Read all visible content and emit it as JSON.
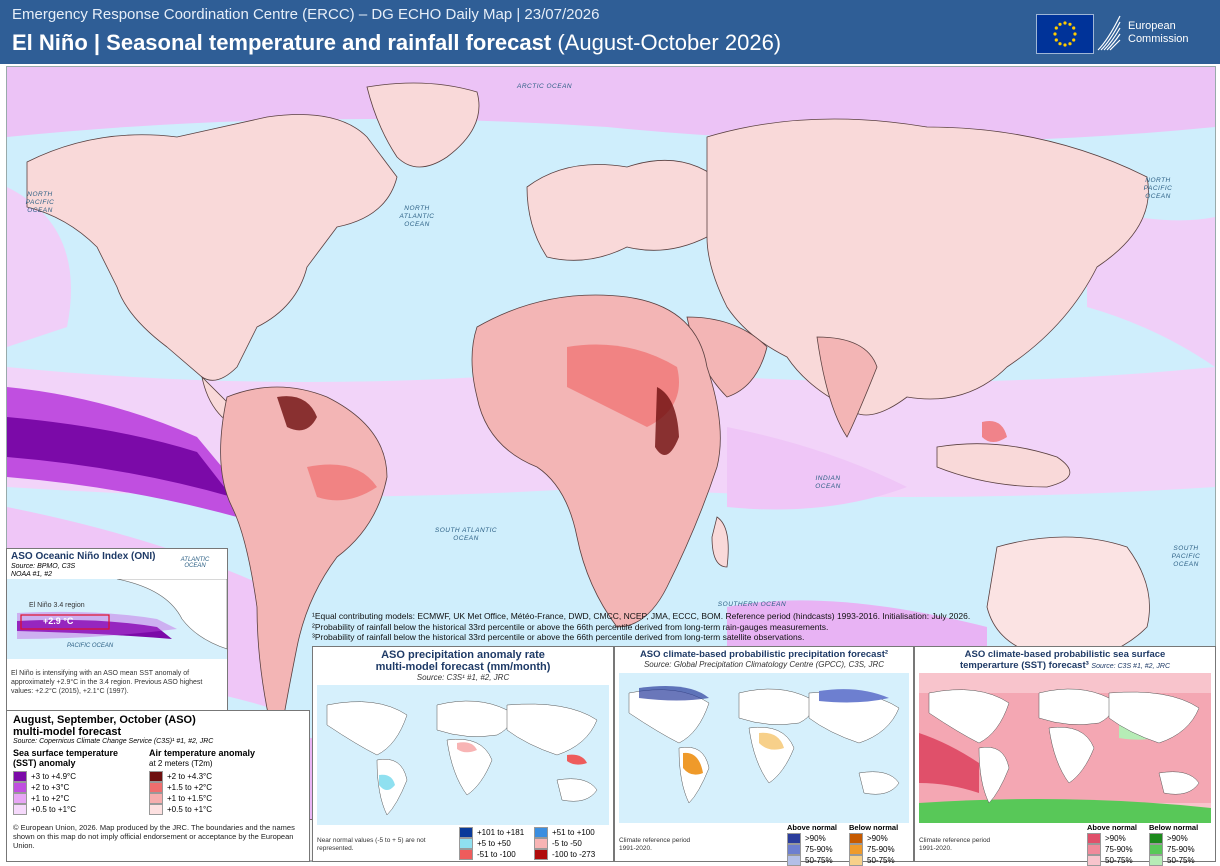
{
  "header": {
    "subtitle": "Emergency Response Coordination Centre (ERCC) – DG ECHO Daily Map | 23/07/2026",
    "title_main": "El Niño | Seasonal temperature and rainfall forecast",
    "title_range": "(August-October 2026)",
    "logo_line1": "European",
    "logo_line2": "Commission"
  },
  "oceans": {
    "arctic": "ARCTIC OCEAN",
    "north_atlantic": "NORTH ATLANTIC OCEAN",
    "north_pacific_w": "NORTH PACIFIC OCEAN",
    "north_pacific_e": "NORTH PACIFIC OCEAN",
    "south_atlantic": "SOUTH ATLANTIC OCEAN",
    "indian": "INDIAN OCEAN",
    "southern": "SOUTHERN OCEAN",
    "south_pacific": "SOUTH PACIFIC OCEAN"
  },
  "oni": {
    "title": "ASO Oceanic Niño Index (ONI)",
    "source1": "Source: BPMO, C3S",
    "source2": "NOAA #1, #2",
    "region": "El Niño 3.4 region",
    "value": "+2.9 °C",
    "atlantic": "ATLANTIC OCEAN",
    "pacific": "PACIFIC OCEAN",
    "text": "El Niño is intensifying with an ASO mean SST anomaly of approximately +2.9°C in the 3.4 region. Previous ASO highest values: +2.2°C (2015), +2.1°C (1997)."
  },
  "legend": {
    "title1": "August, September, October (ASO)",
    "title2": "multi-model forecast",
    "source": "Source: Copernicus Climate Change Service (C3S)¹ #1, #2, JRC",
    "sst_title": "Sea surface temperature (SST) anomaly",
    "air_title": "Air temperature anomaly",
    "air_sub": "at 2 meters (T2m)",
    "sst_items": [
      {
        "label": "+3 to +4.9°C",
        "color": "#7b0aa8"
      },
      {
        "label": "+2 to +3°C",
        "color": "#c04fe0"
      },
      {
        "label": "+1 to +2°C",
        "color": "#e7a6f5"
      },
      {
        "label": "+0.5 to +1°C",
        "color": "#f5d9fb"
      }
    ],
    "air_items": [
      {
        "label": "+2 to +4.3°C",
        "color": "#6e0f0f"
      },
      {
        "label": "+1.5 to +2°C",
        "color": "#ef6e6e"
      },
      {
        "label": "+1 to +1.5°C",
        "color": "#f6adad"
      },
      {
        "label": "+0.5 to +1°C",
        "color": "#fde0e0"
      }
    ],
    "copyright": "© European Union, 2026. Map produced by the JRC. The boundaries and the names shown on this map do not imply official endorsement or acceptance by the European Union."
  },
  "notes": {
    "n1": "¹Equal contributing models: ECMWF, UK Met Office, Météo-France, DWD, CMCC, NCEP, JMA, ECCC, BOM. Reference period (hindcasts) 1993-2016. Initialisation: July 2026.",
    "n2": "²Probability of rainfall below the historical 33rd percentile or above the 66th percentile derived from long-term rain-gauges measurements.",
    "n3": "³Probability of rainfall below the historical 33rd percentile or above the 66th percentile derived from long-term satellite observations."
  },
  "inset_precip": {
    "title1": "ASO precipitation anomaly rate",
    "title2": "multi-model forecast (mm/month)",
    "source": "Source: C3S¹ #1, #2, JRC",
    "note": "Near normal values (-5 to + 5) are not represented.",
    "legend": [
      {
        "label": "+101 to +181",
        "color": "#0a3a9a"
      },
      {
        "label": "+51 to +100",
        "color": "#3b8ee0"
      },
      {
        "label": "+5 to +50",
        "color": "#8fe0f0"
      },
      {
        "label": "-5 to -50",
        "color": "#f8b4b4"
      },
      {
        "label": "-51 to -100",
        "color": "#ee5c5c"
      },
      {
        "label": "-100 to -273",
        "color": "#b00c0c"
      }
    ]
  },
  "inset_gpcc": {
    "title": "ASO climate-based probabilistic precipitation forecast²",
    "source": "Source: Global Precipitation Climatology Centre (GPCC), C3S, JRC",
    "note": "Climate reference period 1991-2020.",
    "above": "Above normal",
    "below": "Below normal",
    "above_items": [
      {
        "label": ">90%",
        "color": "#2b3d9c"
      },
      {
        "label": "75-90%",
        "color": "#6d7fd0"
      },
      {
        "label": "50-75%",
        "color": "#b3bfe8"
      }
    ],
    "below_items": [
      {
        "label": ">90%",
        "color": "#c65a00"
      },
      {
        "label": "75-90%",
        "color": "#ef9a2a"
      },
      {
        "label": "50-75%",
        "color": "#f7d08a"
      }
    ]
  },
  "inset_sst": {
    "title1": "ASO climate-based probabilistic sea surface",
    "title2": "temperarture (SST) forecast³",
    "source": "Source: C3S #1, #2, JRC",
    "note": "Climate reference period 1991-2020.",
    "above": "Above normal",
    "below": "Below normal",
    "above_items": [
      {
        "label": ">90%",
        "color": "#e0506a"
      },
      {
        "label": "75-90%",
        "color": "#f08a9a"
      },
      {
        "label": "50-75%",
        "color": "#f8c4cc"
      }
    ],
    "below_items": [
      {
        "label": ">90%",
        "color": "#1d8a1d"
      },
      {
        "label": "75-90%",
        "color": "#58c858"
      },
      {
        "label": "50-75%",
        "color": "#b6ecb6"
      }
    ]
  }
}
